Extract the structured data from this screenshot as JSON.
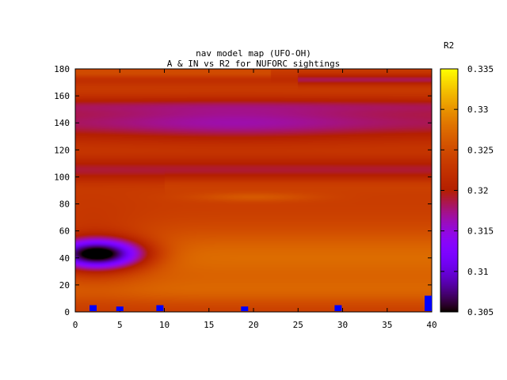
{
  "chart_data": {
    "type": "heatmap",
    "title": "nav model map (UFO-OH)",
    "subtitle": "A & IN vs R2 for NUFORC sightings",
    "xlim": [
      0,
      40
    ],
    "ylim": [
      0,
      180
    ],
    "x_ticks": [
      "0",
      "5",
      "10",
      "15",
      "20",
      "25",
      "30",
      "35",
      "40"
    ],
    "y_ticks": [
      "0",
      "20",
      "40",
      "60",
      "80",
      "100",
      "120",
      "140",
      "160",
      "180"
    ],
    "colorbar": {
      "title": "R2",
      "range": [
        0.305,
        0.335
      ],
      "ticks": [
        "0.305",
        "0.31",
        "0.315",
        "0.32",
        "0.325",
        "0.33",
        "0.335"
      ],
      "palette": "black-purple-red-orange-yellow"
    },
    "features": [
      {
        "desc": "minimum",
        "x": 3,
        "y": 43,
        "r2": 0.305
      },
      {
        "desc": "band",
        "y": 140,
        "r2": 0.317
      },
      {
        "desc": "band",
        "y": 85,
        "r2": 0.327
      },
      {
        "desc": "band",
        "y": 165,
        "r2": 0.324
      }
    ],
    "markers": {
      "color": "#0000ff",
      "points": [
        {
          "x": 2,
          "y": 5
        },
        {
          "x": 5,
          "y": 4
        },
        {
          "x": 9.5,
          "y": 5
        },
        {
          "x": 19,
          "y": 4
        },
        {
          "x": 29.5,
          "y": 5
        },
        {
          "x": 39.7,
          "y": 12
        }
      ]
    }
  }
}
